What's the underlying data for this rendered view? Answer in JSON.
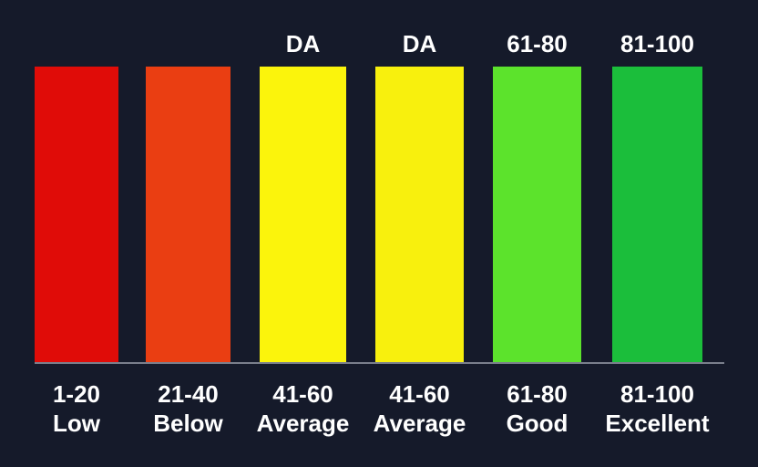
{
  "chart_data": {
    "type": "bar",
    "categories": [
      {
        "range": "1-20",
        "desc": "Low"
      },
      {
        "range": "21-40",
        "desc": "Below"
      },
      {
        "range": "41-60",
        "desc": "Average"
      },
      {
        "range": "41-60",
        "desc": "Average"
      },
      {
        "range": "61-80",
        "desc": "Good"
      },
      {
        "range": "81-100",
        "desc": "Excellent"
      }
    ],
    "top_labels": [
      "",
      "",
      "DA",
      "DA",
      "61-80",
      "81-100"
    ],
    "values": [
      100,
      100,
      100,
      100,
      100,
      100
    ],
    "colors": [
      "#e00c08",
      "#ea3e12",
      "#fbf40c",
      "#f8f00d",
      "#5ce32c",
      "#1bbe3b"
    ],
    "background": "#151a2a",
    "baseline_color": "#7a7f8c",
    "legend": "none",
    "grid": false
  }
}
